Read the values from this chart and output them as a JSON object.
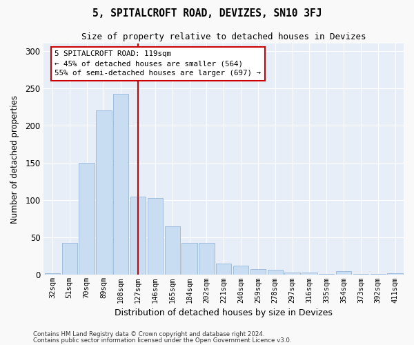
{
  "title": "5, SPITALCROFT ROAD, DEVIZES, SN10 3FJ",
  "subtitle": "Size of property relative to detached houses in Devizes",
  "xlabel": "Distribution of detached houses by size in Devizes",
  "ylabel": "Number of detached properties",
  "bar_color": "#c9ddf2",
  "bar_edge_color": "#a0bedd",
  "background_color": "#e8eef8",
  "grid_color": "#ffffff",
  "categories": [
    "32sqm",
    "51sqm",
    "70sqm",
    "89sqm",
    "108sqm",
    "127sqm",
    "146sqm",
    "165sqm",
    "184sqm",
    "202sqm",
    "221sqm",
    "240sqm",
    "259sqm",
    "278sqm",
    "297sqm",
    "316sqm",
    "335sqm",
    "354sqm",
    "373sqm",
    "392sqm",
    "411sqm"
  ],
  "values": [
    2,
    43,
    150,
    220,
    243,
    105,
    103,
    65,
    43,
    43,
    15,
    12,
    8,
    7,
    3,
    3,
    1,
    5,
    1,
    1,
    2
  ],
  "vline_x": 5.0,
  "vline_color": "#cc0000",
  "annotation_text": "5 SPITALCROFT ROAD: 119sqm\n← 45% of detached houses are smaller (564)\n55% of semi-detached houses are larger (697) →",
  "annotation_box_color": "#ffffff",
  "annotation_box_edge": "#cc0000",
  "ylim": [
    0,
    310
  ],
  "yticks": [
    0,
    50,
    100,
    150,
    200,
    250,
    300
  ],
  "footer_line1": "Contains HM Land Registry data © Crown copyright and database right 2024.",
  "footer_line2": "Contains public sector information licensed under the Open Government Licence v3.0.",
  "fig_bg": "#f9f9f9"
}
